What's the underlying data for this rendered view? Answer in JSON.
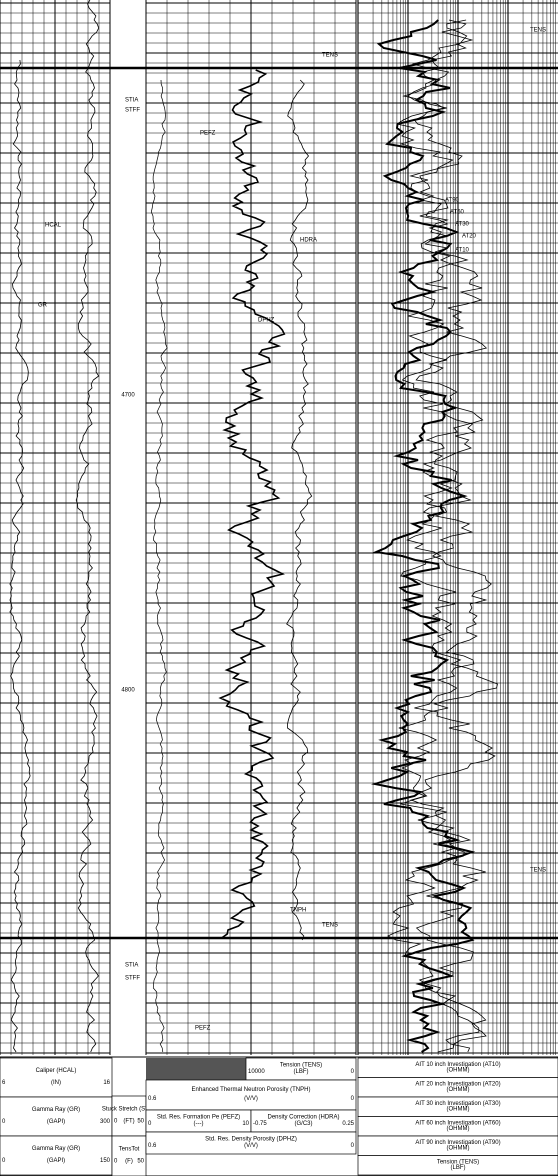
{
  "log": {
    "depth_labels": [
      "4700",
      "4800"
    ],
    "track_labels": [
      "STIA",
      "STFF",
      "HCAL",
      "GR",
      "PEFZ",
      "HDRA",
      "DPHZ",
      "TNPH",
      "TENS",
      "TENS",
      "STIA",
      "STFF",
      "PEFZ",
      "AT90",
      "AT60",
      "AT30",
      "AT20",
      "AT10",
      "TENS",
      "TENS"
    ]
  },
  "footer": {
    "left": [
      {
        "name": "Caliper (HCAL)",
        "unit": "(IN)",
        "min": "6",
        "max": "16"
      },
      {
        "name": "Gamma Ray (GR)",
        "unit": "(GAPI)",
        "min": "0",
        "max": "300"
      },
      {
        "name": "Gamma Ray (GR)",
        "unit": "(GAPI)",
        "min": "0",
        "max": "150"
      }
    ],
    "middle": [
      {
        "name": "Stuck Stretch (STIT)",
        "unit": "(FT)",
        "min": "0",
        "max": "50"
      },
      {
        "name": "TensTot",
        "unit": "(F)",
        "min": "0",
        "max": "50"
      }
    ],
    "right": [
      {
        "name": "Tension (TENS)",
        "unit": "(LBF)",
        "min": "10000",
        "max": "0"
      },
      {
        "name": "Enhanced Thermal Neutron Porosity (TNPH)",
        "unit": "(V/V)",
        "min": "0.6",
        "max": "0"
      },
      {
        "name": "Std. Res. Formation Pe (PEFZ)",
        "unit": "(---)",
        "min": "0",
        "max": "10"
      },
      {
        "name": "Density Correction (HDRA)",
        "unit": "(G/C3)",
        "min": "-0.75",
        "max": "0.25"
      },
      {
        "name": "Std. Res. Density Porosity (DPHZ)",
        "unit": "(V/V)",
        "min": "0.6",
        "max": "0"
      }
    ],
    "resistivity": [
      {
        "name": "AIT 10 inch Investigation (AT10)",
        "unit": "(OHMM)"
      },
      {
        "name": "AIT 20 inch Investigation (AT20)",
        "unit": "(OHMM)"
      },
      {
        "name": "AIT 30 inch Investigation (AT30)",
        "unit": "(OHMM)"
      },
      {
        "name": "AIT 60 inch Investigation (AT60)",
        "unit": "(OHMM)"
      },
      {
        "name": "AIT 90 inch Investigation (AT90)",
        "unit": "(OHMM)"
      },
      {
        "name": "Tension (TENS)",
        "unit": "(LBF)"
      }
    ]
  }
}
